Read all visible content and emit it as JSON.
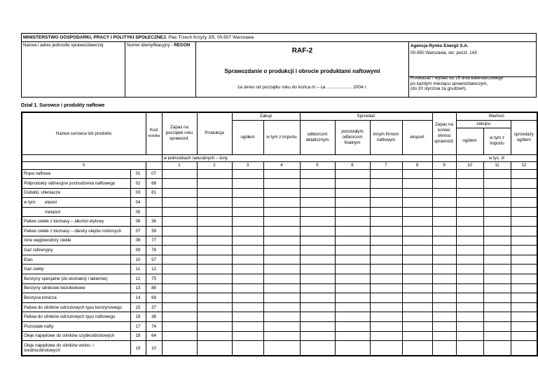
{
  "header": {
    "ministry_name": "MINISTERSTWO GOSPODARKI, PRACY I POLITYKI SPOŁECZNEJ",
    "ministry_address": ", Plac Trzech Krzyży 3/5, 00-507 Warszawa",
    "unit_label": "Nazwa i adres jednostki sprawozdawczej",
    "regon_label": "Numer identyfikacyjny - ",
    "regon_bold": "REGON",
    "form_code": "RAF-2",
    "title": "Sprawozdanie o produkcji i obrocie produktami naftowymi",
    "period": "za okres od początku roku do końca m – ca .................... 2004 r.",
    "agency_name": "Agencja Rynku Energii S.A.",
    "agency_address": "00-950 Warszawa, skr. poczt. 143",
    "deadline_1": "Przekazać / wysłać do 15 dnia kalendarzowego",
    "deadline_2": "po każdym miesiącu sprawozdawczym,",
    "deadline_3": "(do 20 stycznia za grudzień)."
  },
  "section_title": "Dział 1. Surowce i produkty naftowe",
  "columns": {
    "name": "Nazwa surowca lub produktu",
    "kod": "Kod",
    "kod_sub": "nośnika",
    "zapas_start": "Zapas na początek roku sprawozd.",
    "produkcja": "Produkcja",
    "zakup": "Zakup",
    "zakup_ogolem": "ogółem",
    "zakup_import": "w tym z importu",
    "sprzedaz": "Sprzedaż",
    "odb_det": "odbiorcom detalicznym",
    "poz_odb": "pozostałym odbiorcom finalnym",
    "inne_firmy": "innym firmom naftowym",
    "eksport": "eksport",
    "zapas_end": "Zapas na koniec okresu sprawozd.",
    "wartosc": "Wartość",
    "zakupu": "zakupu",
    "wart_ogolem": "ogółem",
    "wart_import": "w tym z importu",
    "sprzedazy": "sprzedaży ogółem",
    "unit_natural": "w jednostkach naturalnych – tony",
    "unit_value": "w tys. zł",
    "numbers": [
      "0",
      "1",
      "2",
      "3",
      "4",
      "5",
      "6",
      "7",
      "8",
      "9",
      "10",
      "11",
      "12"
    ]
  },
  "rows": [
    {
      "name": "Ropa naftowa",
      "lp": "01",
      "kod": "07"
    },
    {
      "name": "Półprodukty rafineryjne pochodzenia naftowego",
      "lp": "02",
      "kod": "68"
    },
    {
      "name": "Dodatki, utleniacze",
      "lp": "03",
      "kod": "81"
    },
    {
      "prefix": "w tym:",
      "name": "etanol",
      "lp": "04",
      "kod": ""
    },
    {
      "name": "metanol",
      "lp": "05",
      "kod": ""
    },
    {
      "name": "Paliwo ciekłe z biomasy – alkohol etylowy",
      "lp": "06",
      "kod": "36"
    },
    {
      "name": "Paliwo ciekłe z biomasy – diestry olejów roślinnych",
      "lp": "07",
      "kod": "39"
    },
    {
      "name": "Inne węglowodory ciekłe",
      "lp": "08",
      "kod": "77"
    },
    {
      "name": "Gaz rafineryjny",
      "lp": "09",
      "kod": "78"
    },
    {
      "name": "Etan",
      "lp": "10",
      "kod": "57"
    },
    {
      "name": "Gaz ciekły",
      "lp": "11",
      "kod": "12"
    },
    {
      "name": "Benzyny specjalne (do ekstrakcji i lakierów)",
      "lp": "12",
      "kod": "75"
    },
    {
      "name": "Benzyny silnikowe bezołowiowe",
      "lp": "13",
      "kod": "88"
    },
    {
      "name": "Benzyna lotnicza",
      "lp": "14",
      "kod": "69"
    },
    {
      "name": "Paliwa do silników odrzutowych typu benzynowego",
      "lp": "15",
      "kod": "37"
    },
    {
      "name": "Paliwa do silników odrzutowych typu naftowego",
      "lp": "16",
      "kod": "38"
    },
    {
      "name": "Pozostałe nafty",
      "lp": "17",
      "kod": "74"
    },
    {
      "name": "Oleje napędowe do silników szybkoobrotowych",
      "lp": "18",
      "kod": "64"
    },
    {
      "name": "Oleje napędowe do silników wolno- i średnioobrotowych",
      "lp": "19",
      "kod": "10"
    }
  ]
}
